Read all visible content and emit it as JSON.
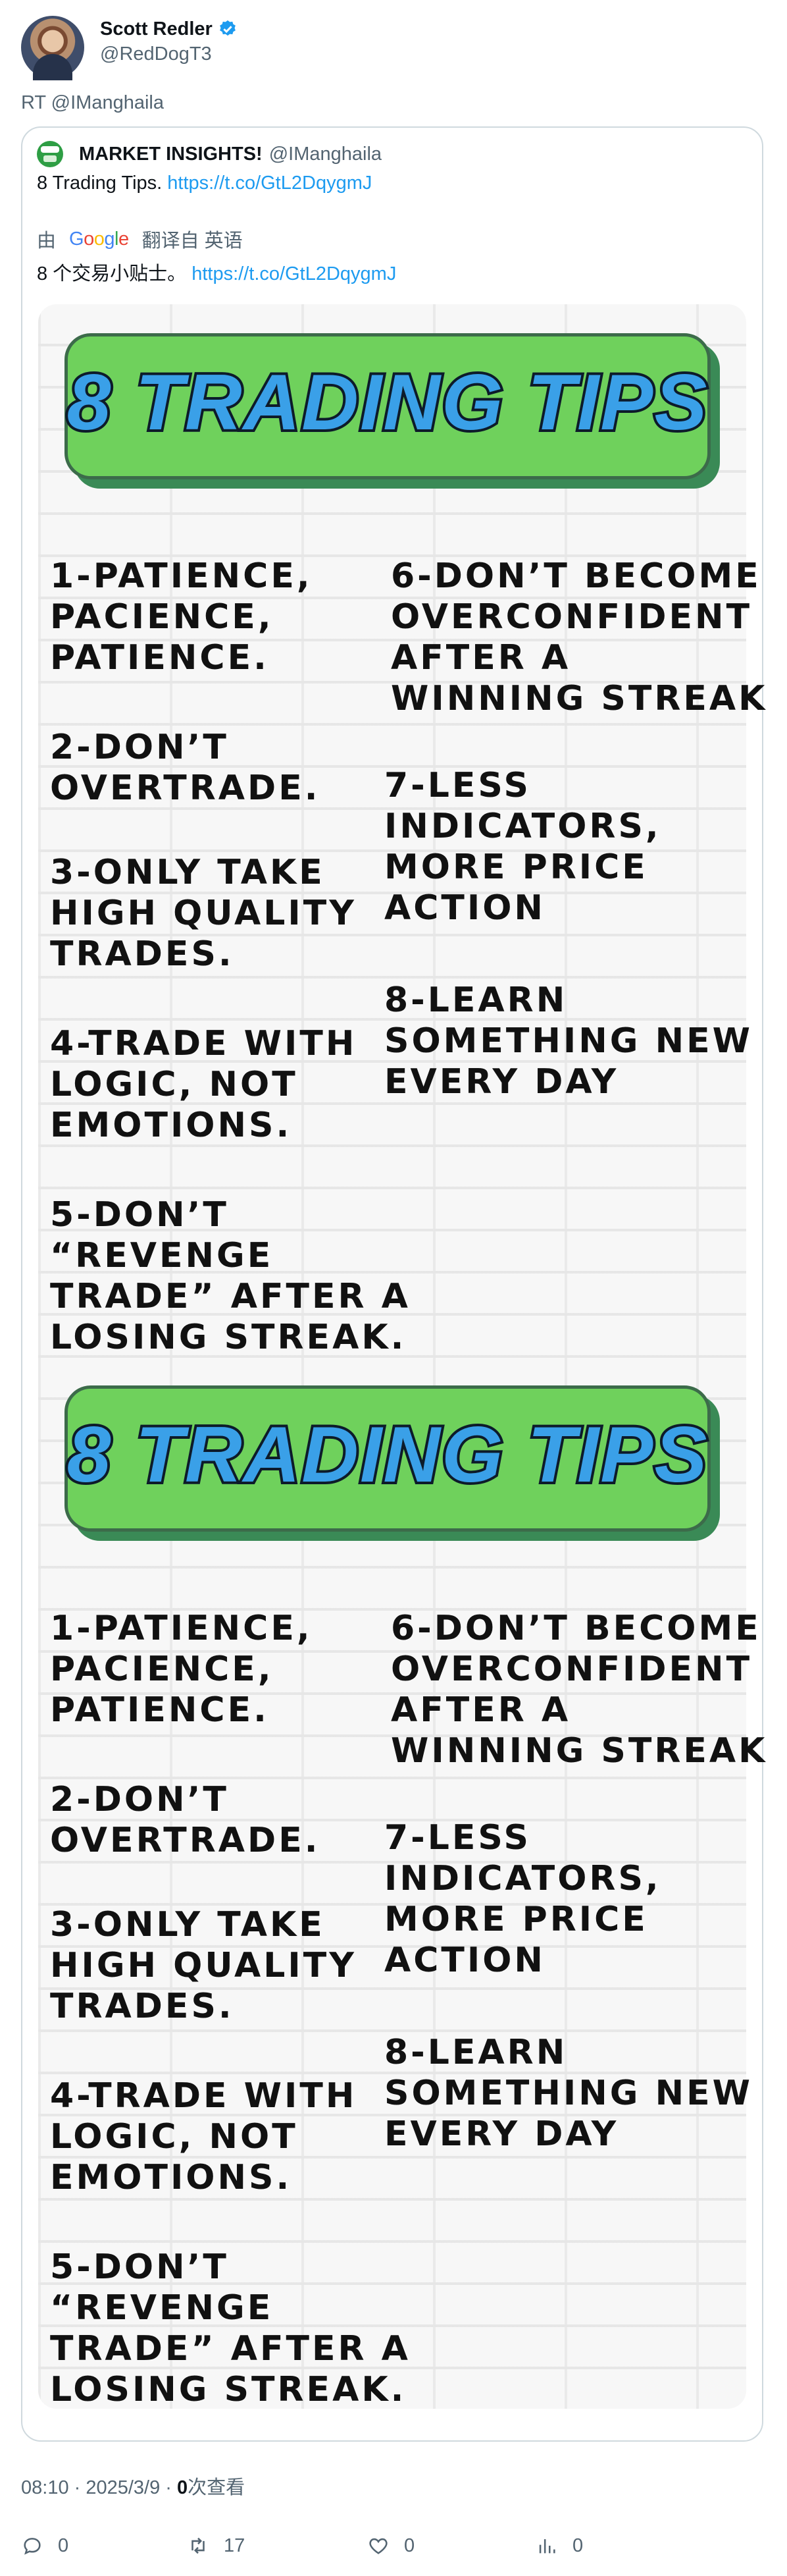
{
  "author": {
    "name": "Scott Redler",
    "handle": "@RedDogT3"
  },
  "retweet_line": "RT @IManghaila",
  "quote": {
    "name": "MARKET INSIGHTS!",
    "handle": "@IManghaila",
    "text": "8 Trading Tips.",
    "link": "https://t.co/GtL2DqygmJ",
    "translated_by_prefix": "由",
    "translated_by_logo": "Google",
    "translated_by_suffix": "翻译自 英语",
    "translated_text": "8 个交易小贴士。",
    "translated_link": "https://t.co/GtL2DqygmJ"
  },
  "image": {
    "title": "8 TRADING TIPS",
    "tips": [
      "1-PATIENCE,\nPACIENCE,\nPATIENCE.",
      "2-DON’T\nOVERTRADE.",
      "3-ONLY TAKE\nHIGH QUALITY\nTRADES.",
      "4-TRADE WITH\nLOGIC, NOT\nEMOTIONS.",
      "5-DON’T\n“REVENGE\nTRADE” AFTER A\nLOSING STREAK.",
      "6-DON’T BECOME\nOVERCONFIDENT\nAFTER A\nWINNING STREAK",
      "7-LESS\nINDICATORS,\nMORE PRICE\nACTION",
      "8-LEARN\nSOMETHING NEW\nEVERY DAY"
    ]
  },
  "meta": {
    "time": "08:10 · 2025/3/9 · ",
    "views_count": "0",
    "views_label": "次查看"
  },
  "actions": {
    "reply": "0",
    "retweet": "17",
    "like": "0",
    "views": "0"
  },
  "colors": {
    "accent": "#1d9bf0",
    "banner_green": "#6fd15c",
    "title_blue": "#3aa0e8"
  },
  "icons": [
    "verified-badge-icon",
    "reply-icon",
    "retweet-icon",
    "like-icon",
    "views-icon",
    "google-logo"
  ]
}
